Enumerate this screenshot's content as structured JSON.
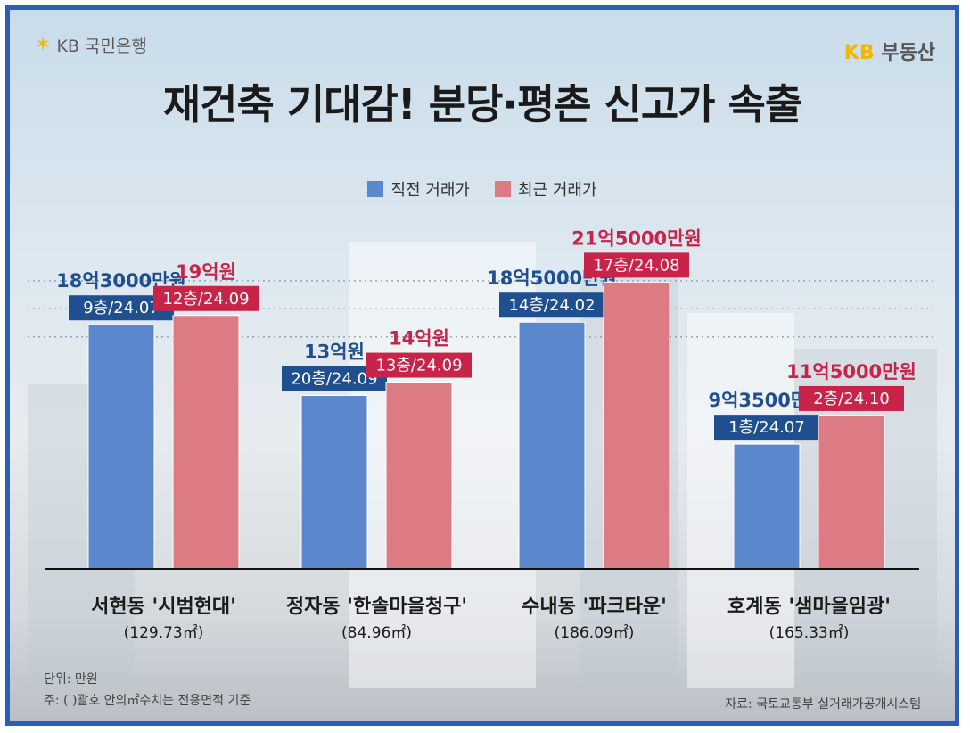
{
  "brand": {
    "left_logo_text": "KB 국민은행",
    "right_logo_kb": "KB",
    "right_logo_text": "부동산"
  },
  "title": "재건축 기대감! 분당·평촌 신고가 속출",
  "legend": {
    "prev": "직전 거래가",
    "recent": "최근 거래가"
  },
  "colors": {
    "prev_bar": "#5b88cc",
    "recent_bar": "#dc7b84",
    "prev_tag": "#1f4f8f",
    "recent_tag": "#c8244a",
    "frame": "#2b5fb4"
  },
  "chart_data": {
    "type": "bar",
    "categories": [
      "서현동 '시범현대'",
      "정자동 '한솔마을청구'",
      "수내동 '파크타운'",
      "호계동 '샘마을임광'"
    ],
    "areas": [
      "(129.73㎡)",
      "(84.96㎡)",
      "(186.09㎡)",
      "(165.33㎡)"
    ],
    "series": [
      {
        "name": "직전 거래가",
        "values": [
          183000,
          130000,
          185000,
          93500
        ],
        "value_labels": [
          "18억3000만원",
          "13억원",
          "18억5000만원",
          "9억3500만원"
        ],
        "details": [
          "9층/24.07",
          "20층/24.09",
          "14층/24.02",
          "1층/24.07"
        ]
      },
      {
        "name": "최근 거래가",
        "values": [
          190000,
          140000,
          215000,
          115000
        ],
        "value_labels": [
          "19억원",
          "14억원",
          "21억5000만원",
          "11억5000만원"
        ],
        "details": [
          "12층/24.09",
          "13층/24.09",
          "17층/24.08",
          "2층/24.10"
        ]
      }
    ],
    "unit": "만원",
    "ylim": [
      0,
      220000
    ]
  },
  "notes": {
    "unit": "단위: 만원",
    "footnote": "주: ( )괄호 안의㎡수치는 전용면적 기준",
    "source": "자료: 국토교통부 실거래가공개시스템"
  }
}
